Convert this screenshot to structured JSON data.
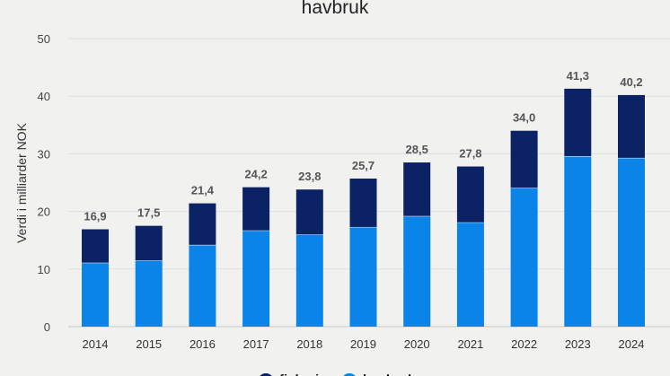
{
  "chart_data": {
    "type": "bar",
    "stacked": true,
    "title": "havbruk",
    "xlabel": "",
    "ylabel": "Verdi i milliarder NOK",
    "ylim": [
      0,
      50
    ],
    "yticks": [
      0,
      10,
      20,
      30,
      40,
      50
    ],
    "grid": true,
    "legend_position": "bottom",
    "categories": [
      "2014",
      "2015",
      "2016",
      "2017",
      "2018",
      "2019",
      "2020",
      "2021",
      "2022",
      "2023",
      "2024"
    ],
    "series": [
      {
        "name": "havbruk",
        "color": "#0a84e8",
        "values": [
          11.1,
          11.5,
          14.2,
          16.7,
          16.0,
          17.3,
          19.2,
          18.1,
          24.1,
          29.6,
          29.3
        ]
      },
      {
        "name": "fiskeri",
        "color": "#0b2265",
        "values": [
          5.8,
          6.0,
          7.2,
          7.5,
          7.8,
          8.4,
          9.3,
          9.7,
          9.9,
          11.7,
          10.9
        ]
      }
    ],
    "totals": [
      "16,9",
      "17,5",
      "21,4",
      "24,2",
      "23,8",
      "25,7",
      "28,5",
      "27,8",
      "34,0",
      "41,3",
      "40,2"
    ],
    "legend": [
      "fiskeri",
      "havbruk"
    ]
  }
}
